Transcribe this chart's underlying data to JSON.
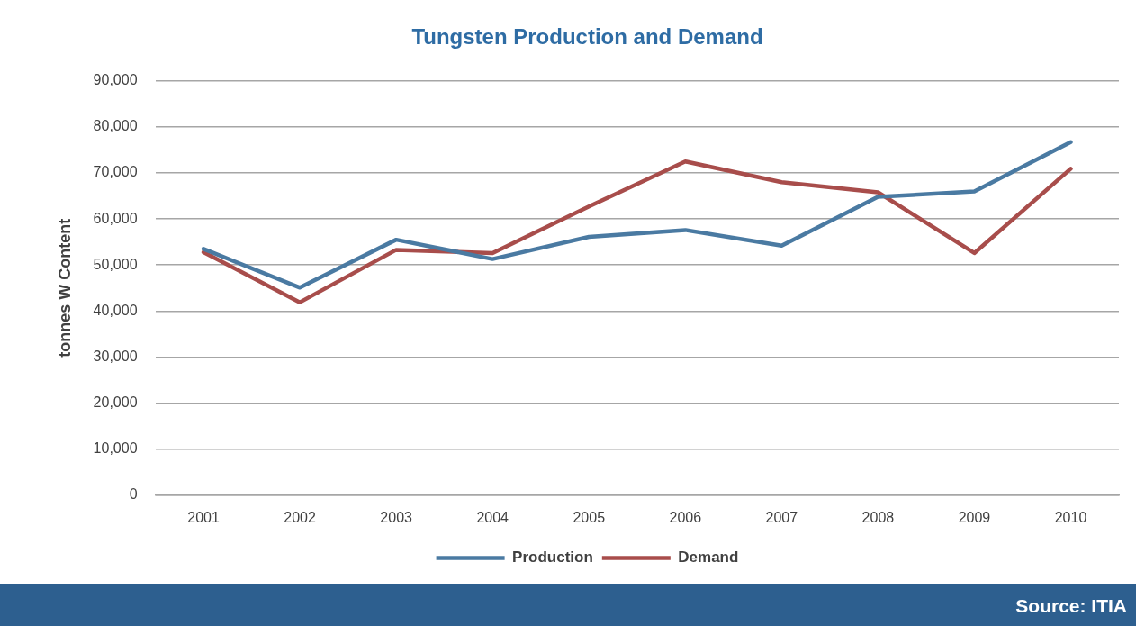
{
  "chart_data": {
    "type": "line",
    "title": "Tungsten Production and Demand",
    "ylabel": "tonnes W Content",
    "categories": [
      "2001",
      "2002",
      "2003",
      "2004",
      "2005",
      "2006",
      "2007",
      "2008",
      "2009",
      "2010"
    ],
    "series": [
      {
        "name": "Production",
        "color": "#4a7aa2",
        "values": [
          53500,
          45100,
          55500,
          51300,
          56100,
          57600,
          54200,
          64800,
          66000,
          76700
        ]
      },
      {
        "name": "Demand",
        "color": "#a84d4b",
        "values": [
          52800,
          41900,
          53300,
          52600,
          62700,
          72500,
          68000,
          65800,
          52600,
          70900
        ]
      }
    ],
    "ylim": [
      0,
      90000
    ],
    "yticks": [
      0,
      {
        "value": 10000,
        "label": "10,000"
      },
      {
        "value": 20000,
        "label": "20,000"
      },
      {
        "value": 30000,
        "label": "30,000"
      },
      {
        "value": 40000,
        "label": "40,000"
      },
      {
        "value": 50000,
        "label": "50,000"
      },
      {
        "value": 60000,
        "label": "60,000"
      },
      {
        "value": 70000,
        "label": "70,000"
      },
      {
        "value": 80000,
        "label": "80,000"
      },
      {
        "value": 90000,
        "label": "90,000"
      }
    ],
    "grid": "y",
    "legend": "bottom",
    "marker": "none",
    "line_style": "solid",
    "annotations": [
      "Source: ITIA"
    ]
  }
}
